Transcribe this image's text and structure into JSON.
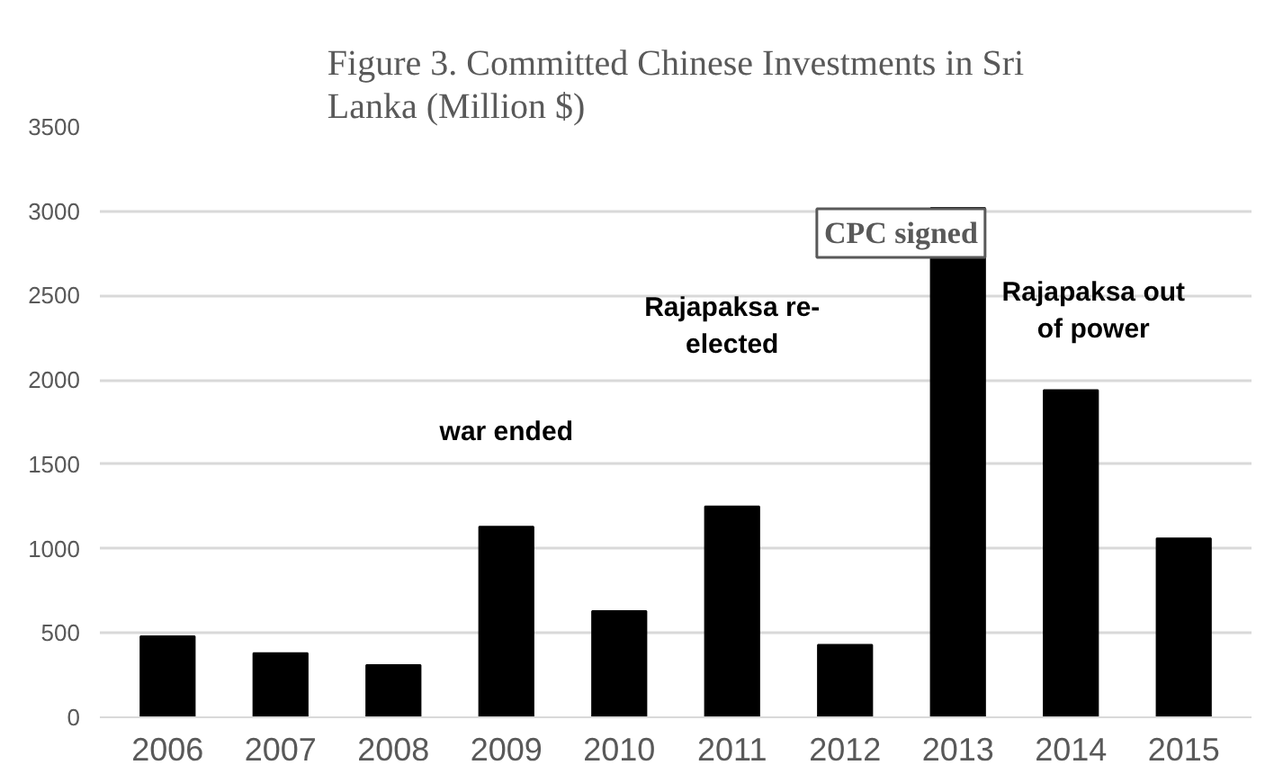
{
  "chart_data": {
    "type": "bar",
    "title": "Figure 3. Committed Chinese Investments in Sri Lanka (Million $)",
    "categories": [
      "2006",
      "2007",
      "2008",
      "2009",
      "2010",
      "2011",
      "2012",
      "2013",
      "2014",
      "2015"
    ],
    "values": [
      480,
      380,
      310,
      1130,
      630,
      1250,
      430,
      3020,
      1940,
      1060
    ],
    "color": "#000000",
    "ylim": [
      0,
      3500
    ],
    "yticks": [
      0,
      500,
      1000,
      1500,
      2000,
      2500,
      3000,
      3500
    ],
    "grid": "y",
    "annotations": [
      "war ended",
      "Rajapaksa re-elected",
      "CPC signed",
      "Rajapaksa out of power"
    ]
  }
}
